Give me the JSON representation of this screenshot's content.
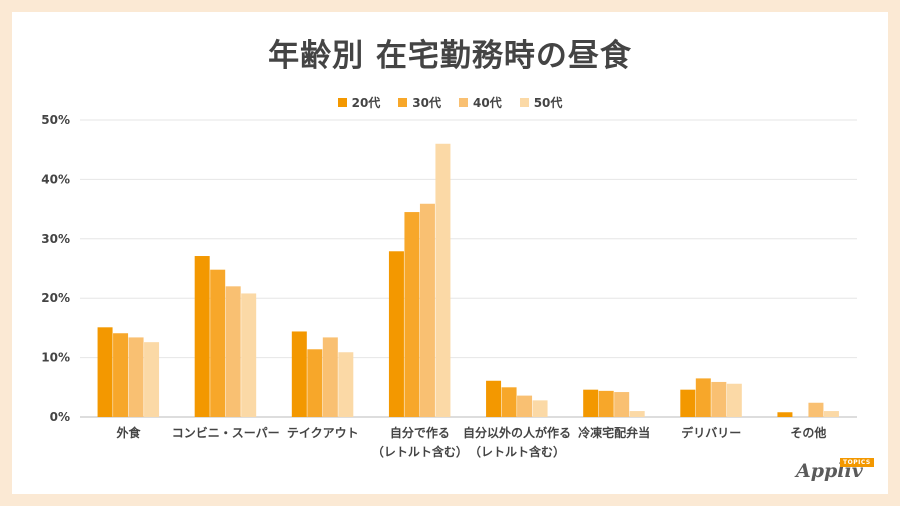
{
  "title": "年齢別 在宅勤務時の昼食",
  "logo": {
    "text": "Appliv",
    "tag": "TOPICS"
  },
  "chart_data": {
    "type": "bar",
    "categories": [
      [
        "外食"
      ],
      [
        "コンビニ・スーパー"
      ],
      [
        "テイクアウト"
      ],
      [
        "自分で作る",
        "（レトルト含む）"
      ],
      [
        "自分以外の人が作る",
        "（レトルト含む）"
      ],
      [
        "冷凍宅配弁当"
      ],
      [
        "デリバリー"
      ],
      [
        "その他"
      ]
    ],
    "series": [
      {
        "name": "20代",
        "color": "#f39800",
        "values": [
          15.1,
          27.1,
          14.4,
          27.9,
          6.1,
          4.6,
          4.6,
          0.8
        ]
      },
      {
        "name": "30代",
        "color": "#f7a72a",
        "values": [
          14.1,
          24.8,
          11.4,
          34.5,
          5.0,
          4.4,
          6.5,
          0.0
        ]
      },
      {
        "name": "40代",
        "color": "#f9c072",
        "values": [
          13.4,
          22.0,
          13.4,
          35.9,
          3.6,
          4.2,
          5.9,
          2.4
        ]
      },
      {
        "name": "50代",
        "color": "#fbd9a6",
        "values": [
          12.6,
          20.8,
          10.9,
          46.0,
          2.8,
          1.0,
          5.6,
          1.0
        ]
      }
    ],
    "ylim": [
      0,
      50
    ],
    "yticks": [
      "0%",
      "10%",
      "20%",
      "30%",
      "40%",
      "50%"
    ],
    "grid": true,
    "legend_position": "top-center"
  }
}
